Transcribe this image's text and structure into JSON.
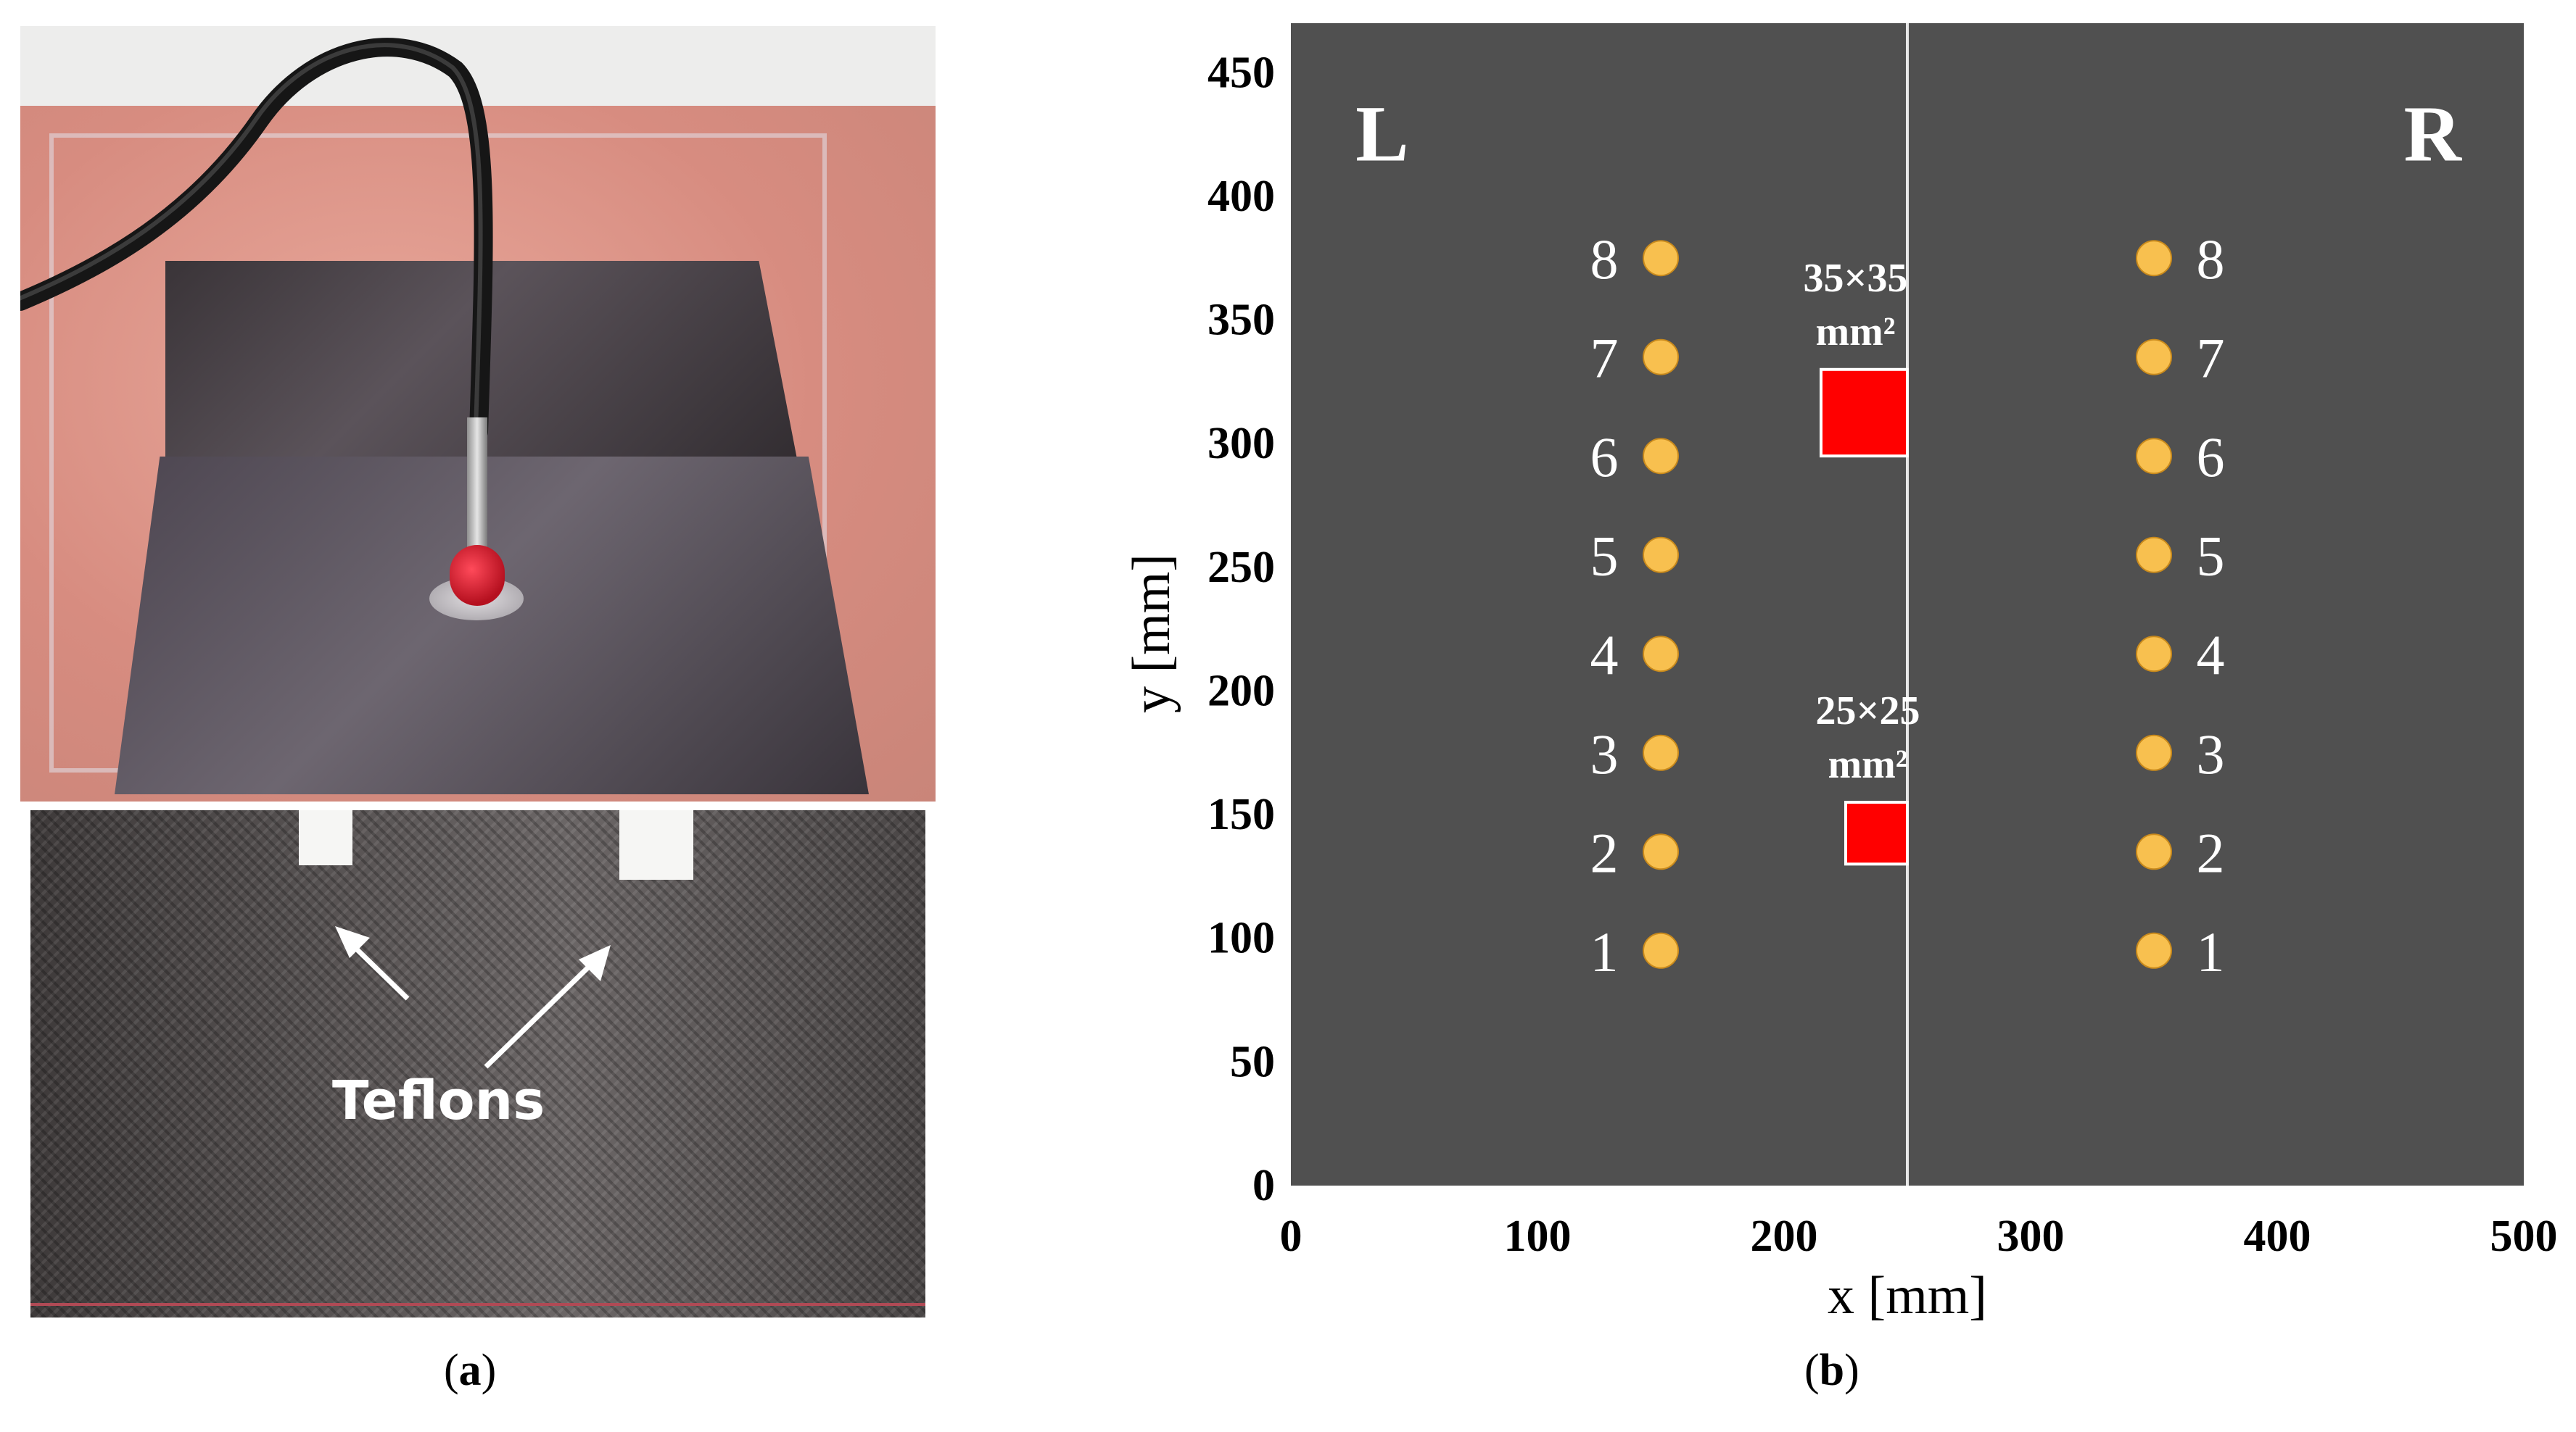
{
  "panel_a": {
    "callout_label": "Teflons",
    "caption_letter": "a"
  },
  "panel_b": {
    "caption_letter": "b"
  },
  "chart_data": {
    "type": "scatter",
    "xlabel": "x [mm]",
    "ylabel": "y [mm]",
    "xlim": [
      0,
      500
    ],
    "ylim": [
      0,
      470
    ],
    "x_ticks": [
      0,
      100,
      200,
      300,
      400,
      500
    ],
    "y_ticks": [
      0,
      50,
      100,
      150,
      200,
      250,
      300,
      350,
      400,
      450
    ],
    "grid": false,
    "background_color": "#505050",
    "divider_x": 250,
    "region_labels": [
      {
        "text": "L",
        "x": 37,
        "y": 425
      },
      {
        "text": "R",
        "x": 463,
        "y": 425
      }
    ],
    "sensor_color": "#f8c04f",
    "sensors_left": {
      "x": 150,
      "labels": [
        "1",
        "2",
        "3",
        "4",
        "5",
        "6",
        "7",
        "8"
      ],
      "y": [
        95,
        135,
        175,
        215,
        255,
        295,
        335,
        375
      ]
    },
    "sensors_right": {
      "x": 350,
      "labels": [
        "1",
        "2",
        "3",
        "4",
        "5",
        "6",
        "7",
        "8"
      ],
      "y": [
        95,
        135,
        175,
        215,
        255,
        295,
        335,
        375
      ]
    },
    "defect_color": "#ff0000",
    "defects": [
      {
        "label_line1": "35×35",
        "label_line2": "mm²",
        "x": 215,
        "y": 295,
        "size": 35
      },
      {
        "label_line1": "25×25",
        "label_line2": "mm²",
        "x": 225,
        "y": 130,
        "size": 25
      }
    ]
  }
}
